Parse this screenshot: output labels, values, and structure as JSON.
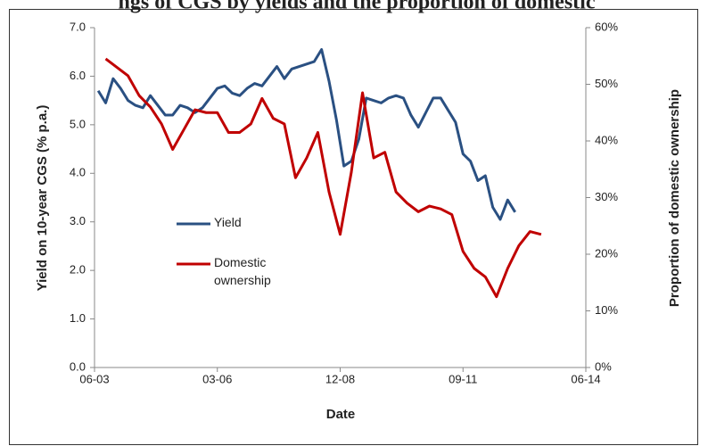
{
  "chart_data": {
    "type": "line",
    "title": "ngs of CGS by yields and the proportion of domestic",
    "x_label": "Date",
    "y_label": "Yield on 10-year CGS (% p.a.)",
    "y2_label": "Proportion of domestic ownership",
    "xlim": [
      "06-03",
      "06-14"
    ],
    "xticks": [
      "06-03",
      "03-06",
      "12-08",
      "09-11",
      "06-14"
    ],
    "ylim": [
      0,
      7
    ],
    "yticks": [
      {
        "value": 0,
        "label": "0.0"
      },
      {
        "value": 1,
        "label": "1.0"
      },
      {
        "value": 2,
        "label": "2.0"
      },
      {
        "value": 3,
        "label": "3.0"
      },
      {
        "value": 4,
        "label": "4.0"
      },
      {
        "value": 5,
        "label": "5.0"
      },
      {
        "value": 6,
        "label": "6.0"
      },
      {
        "value": 7,
        "label": "7.0"
      }
    ],
    "y2lim": [
      0,
      60
    ],
    "y2ticks": [
      {
        "value": 0,
        "label": "0%"
      },
      {
        "value": 10,
        "label": "10%"
      },
      {
        "value": 20,
        "label": "20%"
      },
      {
        "value": 30,
        "label": "30%"
      },
      {
        "value": 40,
        "label": "40%"
      },
      {
        "value": 50,
        "label": "50%"
      },
      {
        "value": 60,
        "label": "60%"
      }
    ],
    "series": [
      {
        "name": "Yield",
        "color": "#2a5082",
        "x": [
          "07-03",
          "09-03",
          "11-03",
          "01-04",
          "03-04",
          "05-04",
          "07-04",
          "09-04",
          "11-04",
          "01-05",
          "03-05",
          "05-05",
          "07-05",
          "09-05",
          "11-05",
          "01-06",
          "03-06",
          "05-06",
          "07-06",
          "09-06",
          "11-06",
          "01-07",
          "03-07",
          "05-07",
          "07-07",
          "09-07",
          "11-07",
          "01-08",
          "03-08",
          "05-08",
          "07-08",
          "09-08",
          "11-08",
          "01-09",
          "03-09",
          "05-09",
          "07-09",
          "09-09",
          "11-09",
          "01-10",
          "03-10",
          "05-10",
          "07-10",
          "09-10",
          "11-10",
          "01-11",
          "03-11",
          "05-11",
          "07-11",
          "09-11",
          "11-11",
          "01-12",
          "03-12",
          "05-12",
          "07-12",
          "09-12",
          "11-12"
        ],
        "values": [
          5.7,
          5.45,
          5.95,
          5.75,
          5.5,
          5.4,
          5.35,
          5.6,
          5.4,
          5.2,
          5.2,
          5.4,
          5.35,
          5.25,
          5.35,
          5.55,
          5.75,
          5.8,
          5.65,
          5.6,
          5.75,
          5.85,
          5.8,
          6.0,
          6.2,
          5.95,
          6.15,
          6.2,
          6.25,
          6.3,
          6.55,
          5.9,
          5.1,
          4.15,
          4.25,
          4.7,
          5.55,
          5.5,
          5.45,
          5.55,
          5.6,
          5.55,
          5.2,
          4.95,
          5.25,
          5.55,
          5.55,
          5.3,
          5.05,
          4.4,
          4.25,
          3.85,
          3.95,
          3.3,
          3.05,
          3.45,
          3.2
        ]
      },
      {
        "name": "Domestic ownership",
        "color": "#c00000",
        "axis": "y2",
        "x": [
          "09-03",
          "12-03",
          "03-04",
          "06-04",
          "09-04",
          "12-04",
          "03-05",
          "06-05",
          "09-05",
          "12-05",
          "03-06",
          "06-06",
          "09-06",
          "12-06",
          "03-07",
          "06-07",
          "09-07",
          "12-07",
          "03-08",
          "06-08",
          "09-08",
          "12-08",
          "03-09",
          "06-09",
          "09-09",
          "12-09",
          "03-10",
          "06-10",
          "09-10",
          "12-10",
          "03-11",
          "06-11",
          "09-11",
          "12-11",
          "03-12",
          "06-12",
          "09-12",
          "12-12",
          "03-13",
          "06-13"
        ],
        "values": [
          54.5,
          53,
          51.5,
          48,
          46,
          43,
          38.5,
          42,
          45.5,
          45,
          45,
          41.5,
          41.5,
          43,
          47.5,
          44,
          43,
          33.5,
          37,
          41.5,
          31,
          23.5,
          34.5,
          48.5,
          37,
          38,
          31,
          29,
          27.5,
          28.5,
          28,
          27,
          20.5,
          17.5,
          16,
          12.5,
          17.5,
          21.5,
          24,
          23.5
        ]
      }
    ]
  }
}
